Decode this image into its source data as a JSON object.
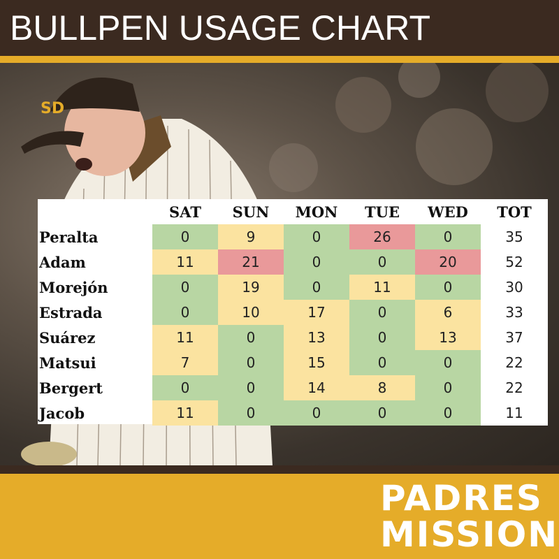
{
  "header": {
    "title": "BULLPEN USAGE CHART"
  },
  "logo": {
    "line1": "PADRES",
    "line2": "MISSION"
  },
  "colors": {
    "header_bg": "#3b2a20",
    "gold": "#e5ac29",
    "cell_low": "#b8d6a3",
    "cell_mid": "#fbe3a0",
    "cell_high": "#e9999a"
  },
  "chart_data": {
    "type": "table",
    "title": "BULLPEN USAGE CHART",
    "columns": [
      "",
      "SAT",
      "SUN",
      "MON",
      "TUE",
      "WED",
      "TOT"
    ],
    "rows": [
      {
        "name": "Peralta",
        "values": [
          0,
          9,
          0,
          26,
          0
        ],
        "tot": 35
      },
      {
        "name": "Adam",
        "values": [
          11,
          21,
          0,
          0,
          20
        ],
        "tot": 52
      },
      {
        "name": "Morejón",
        "values": [
          0,
          19,
          0,
          11,
          0
        ],
        "tot": 30
      },
      {
        "name": "Estrada",
        "values": [
          0,
          10,
          17,
          0,
          6
        ],
        "tot": 33
      },
      {
        "name": "Suárez",
        "values": [
          11,
          0,
          13,
          0,
          13
        ],
        "tot": 37
      },
      {
        "name": "Matsui",
        "values": [
          7,
          0,
          15,
          0,
          0
        ],
        "tot": 22
      },
      {
        "name": "Bergert",
        "values": [
          0,
          0,
          14,
          8,
          0
        ],
        "tot": 22
      },
      {
        "name": "Jacob",
        "values": [
          11,
          0,
          0,
          0,
          0
        ],
        "tot": 11
      }
    ]
  }
}
